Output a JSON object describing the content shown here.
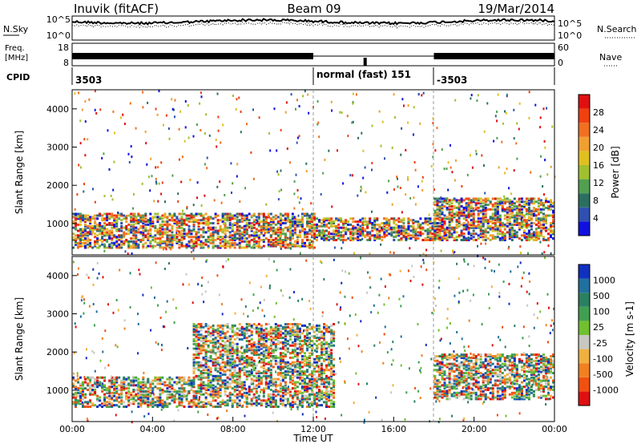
{
  "header": {
    "station": "Inuvik (fitACF)",
    "beam": "Beam 09",
    "date": "19/Mar/2014"
  },
  "noise_panel": {
    "left_label": "N.Sky",
    "right_label": "N.Search",
    "left_ticks": [
      "10^5",
      "10^0"
    ],
    "right_ticks": [
      "10^5",
      "10^0"
    ]
  },
  "freq_panel": {
    "left_label_1": "Freq.",
    "left_label_2": "[MHz]",
    "right_label": "Nave",
    "left_ticks": [
      "18",
      "8"
    ],
    "right_ticks": [
      "60",
      "0"
    ]
  },
  "cpid_panel": {
    "label": "CPID",
    "entries": [
      {
        "text": "3503",
        "start": 0
      },
      {
        "text": "normal (fast) 151",
        "start": 12
      },
      {
        "text": "-3503",
        "start": 18
      }
    ]
  },
  "x_axis": {
    "label": "Time UT",
    "ticks": [
      "00:00",
      "04:00",
      "08:00",
      "12:00",
      "16:00",
      "20:00",
      "00:00"
    ]
  },
  "power_panel": {
    "ylabel": "Slant Range [km]",
    "yticks": [
      "1000",
      "2000",
      "3000",
      "4000"
    ],
    "colorbar_label": "Power [dB]",
    "colorbar_ticks": [
      "4",
      "8",
      "12",
      "16",
      "20",
      "24",
      "28"
    ],
    "colors": [
      "#1010e0",
      "#3050b0",
      "#2a7060",
      "#50a050",
      "#a0c030",
      "#e0c020",
      "#f0a030",
      "#f07020",
      "#f04010",
      "#e01010"
    ]
  },
  "velocity_panel": {
    "ylabel": "Slant Range [km]",
    "yticks": [
      "1000",
      "2000",
      "3000",
      "4000"
    ],
    "colorbar_label": "Velocity [m s-1]",
    "colorbar_ticks": [
      "1000",
      "500",
      "100",
      "25",
      "-25",
      "-100",
      "-500",
      "-1000"
    ],
    "colors": [
      "#1030c0",
      "#2070a0",
      "#2a8060",
      "#40a050",
      "#70c030",
      "#c8c8c0",
      "#f0b040",
      "#f08020",
      "#f05010",
      "#e01010"
    ]
  },
  "chart_data": {
    "type": "heatmap",
    "x_range_hours": [
      0,
      24
    ],
    "y_range_km": [
      180,
      4500
    ],
    "cpid_change_times": [
      12,
      18
    ],
    "power_bands": [
      {
        "t0": 0,
        "t1": 12,
        "r0": 400,
        "r1": 1300,
        "level": "high"
      },
      {
        "t0": 12,
        "t1": 18,
        "r0": 600,
        "r1": 1200,
        "level": "medium"
      },
      {
        "t0": 18,
        "t1": 24,
        "r0": 600,
        "r1": 1700,
        "level": "high"
      }
    ],
    "velocity_bands": [
      {
        "t0": 0,
        "t1": 6,
        "r0": 600,
        "r1": 1400,
        "sign": "negative"
      },
      {
        "t0": 6,
        "t1": 13,
        "r0": 600,
        "r1": 2800,
        "sign": "positive"
      },
      {
        "t0": 18,
        "t1": 24,
        "r0": 800,
        "r1": 2000,
        "sign": "negative"
      }
    ]
  }
}
